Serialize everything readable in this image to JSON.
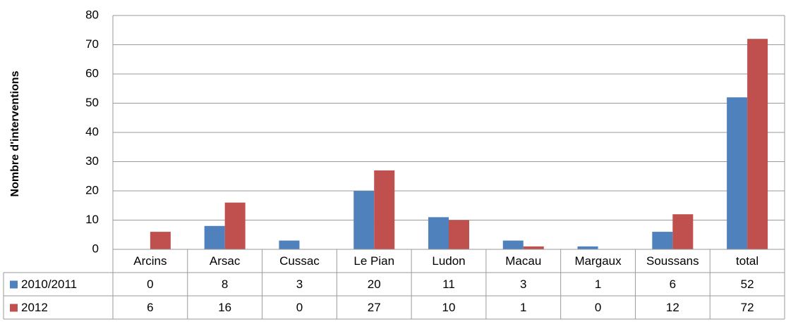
{
  "chart_data": {
    "type": "bar",
    "y_label": "Nombre d'interventions",
    "categories": [
      "Arcins",
      "Arsac",
      "Cussac",
      "Le Pian",
      "Ludon",
      "Macau",
      "Margaux",
      "Soussans",
      "total"
    ],
    "series": [
      {
        "name": "2010/2011",
        "color": "#4f81bd",
        "values": [
          0,
          8,
          3,
          20,
          11,
          3,
          1,
          6,
          52
        ]
      },
      {
        "name": "2012",
        "color": "#c0504d",
        "values": [
          6,
          16,
          0,
          27,
          10,
          1,
          0,
          12,
          72
        ]
      }
    ],
    "ylim": [
      0,
      80
    ],
    "yticks": [
      0,
      10,
      20,
      30,
      40,
      50,
      60,
      70,
      80
    ],
    "grid": true,
    "data_table": true
  }
}
